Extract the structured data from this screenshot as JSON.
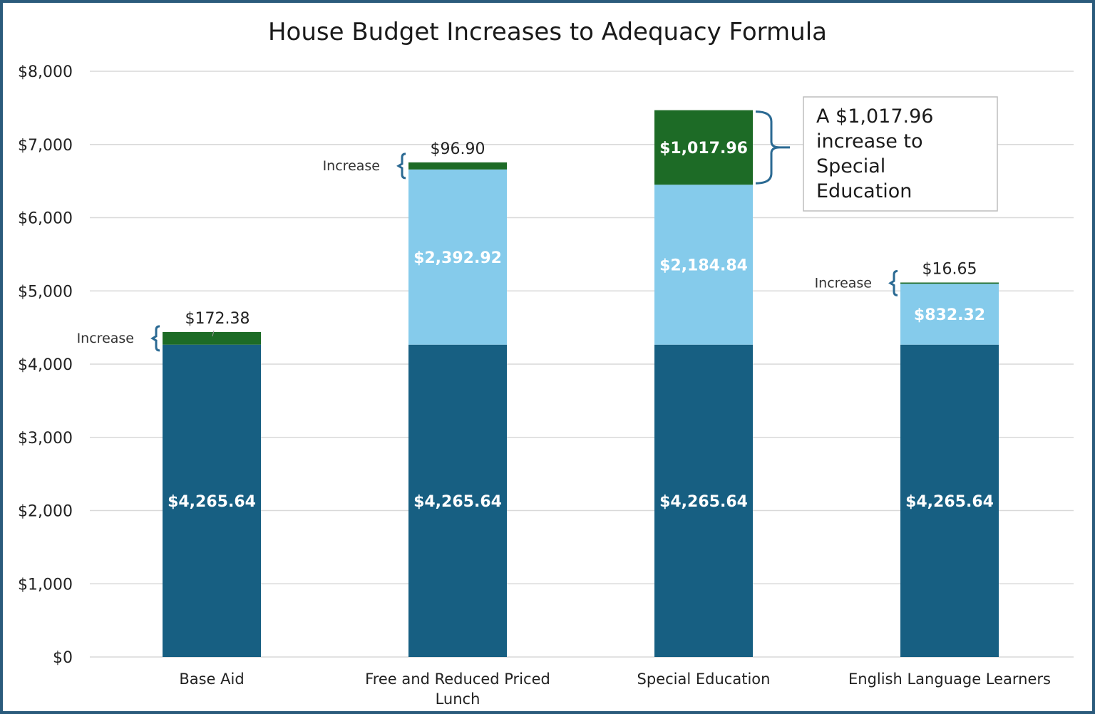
{
  "chart_data": {
    "type": "bar",
    "stacked": true,
    "title": "House Budget Increases to Adequacy Formula",
    "xlabel": "",
    "ylabel": "",
    "ylim": [
      0,
      8000
    ],
    "yticks": [
      0,
      1000,
      2000,
      3000,
      4000,
      5000,
      6000,
      7000,
      8000
    ],
    "ytick_labels": [
      "$0",
      "$1,000",
      "$2,000",
      "$3,000",
      "$4,000",
      "$5,000",
      "$6,000",
      "$7,000",
      "$8,000"
    ],
    "grid": true,
    "categories": [
      [
        "Base Aid"
      ],
      [
        "Free and Reduced Priced",
        "Lunch"
      ],
      [
        "Special Education"
      ],
      [
        "English Language Learners"
      ]
    ],
    "series": [
      {
        "values": [
          4265.64,
          4265.64,
          4265.64,
          4265.64
        ],
        "labels": [
          "$4,265.64",
          "$4,265.64",
          "$4,265.64",
          "$4,265.64"
        ],
        "color": "#175f82"
      },
      {
        "values": [
          0,
          2392.92,
          2184.84,
          832.32
        ],
        "labels": [
          "",
          "$2,392.92",
          "$2,184.84",
          "$832.32"
        ],
        "color": "#85cbeb"
      },
      {
        "values": [
          172.38,
          96.9,
          1017.96,
          16.65
        ],
        "labels": [
          "$172.38",
          "$96.90",
          "$1,017.96",
          "$16.65"
        ],
        "color": "#1d6b26"
      }
    ],
    "increase_word": "Increase",
    "callout": [
      "A $1,017.96",
      "increase to",
      "Special",
      "Education"
    ],
    "colors": {
      "axis_text": "#222222",
      "grid": "#d9d9d9",
      "brace": "#2b6a93",
      "frame": "#2b5b7c"
    }
  }
}
